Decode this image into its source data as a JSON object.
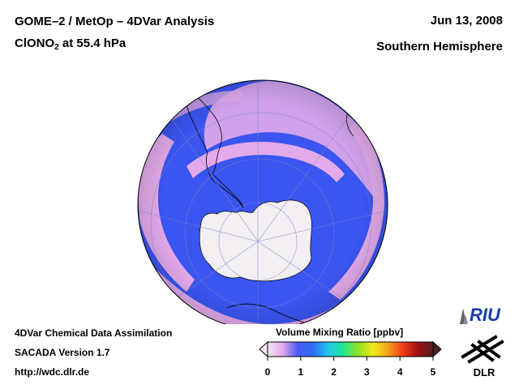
{
  "title": {
    "line1": "GOME–2 / MetOp – 4DVar Analysis",
    "species_main": "ClONO",
    "species_sub": "2",
    "species_level": " at 55.4 hPa"
  },
  "date": "Jun 13, 2008",
  "region": "Southern Hemisphere",
  "footer": {
    "line1": "4DVar Chemical Data Assimilation",
    "line2": "SACADA Version 1.7",
    "line3": "http://wdc.dlr.de"
  },
  "colorbar": {
    "title": "Volume Mixing Ratio [ppbv]",
    "ticks": [
      "0",
      "1",
      "2",
      "3",
      "4",
      "5"
    ],
    "colors": [
      "#f4e6f4",
      "#e4a8ea",
      "#4a5cf2",
      "#2f6cf6",
      "#22c6f2",
      "#20e69a",
      "#8ee020",
      "#f2ea1a",
      "#f2a21a",
      "#f23a1a",
      "#a01010",
      "#502020"
    ]
  },
  "logos": {
    "riu": "RIU",
    "dlr": "DLR"
  },
  "map": {
    "background": "#3a55f0",
    "antarctica_fill": "#f4f0f4",
    "band_color": "#e0a8ea"
  }
}
